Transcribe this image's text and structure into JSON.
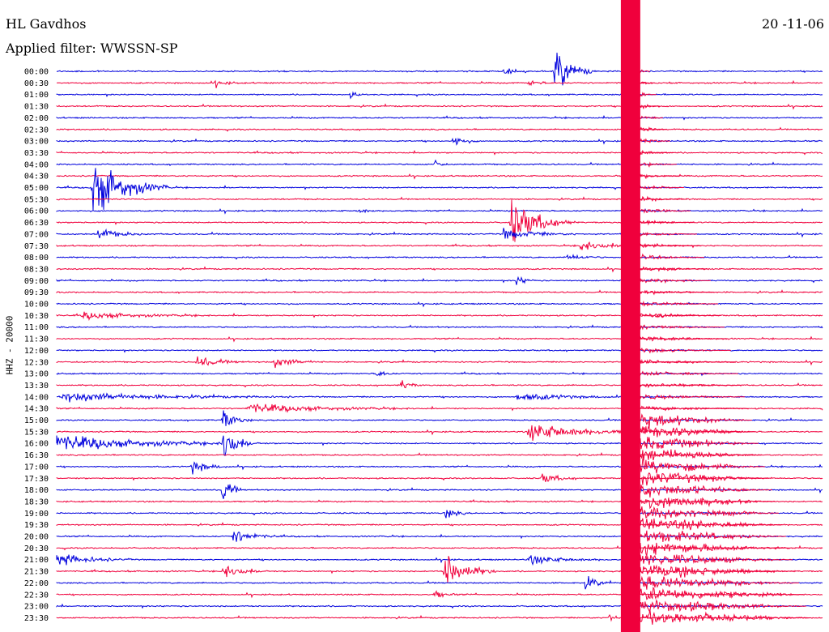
{
  "header": {
    "station": "HL Gavdhos",
    "filter": "Applied filter: WWSSN-SP",
    "date": "20 -11-06"
  },
  "chart_data": {
    "type": "line",
    "title": "HL Gavdhos",
    "ylabel": "HHZ - 20000",
    "times": [
      "00:00",
      "00:30",
      "01:00",
      "01:30",
      "02:00",
      "02:30",
      "03:00",
      "03:30",
      "04:00",
      "04:30",
      "05:00",
      "05:30",
      "06:00",
      "06:30",
      "07:00",
      "07:30",
      "08:00",
      "08:30",
      "09:00",
      "09:30",
      "10:00",
      "10:30",
      "11:00",
      "11:30",
      "12:00",
      "12:30",
      "13:00",
      "13:30",
      "14:00",
      "14:30",
      "15:00",
      "15:30",
      "16:00",
      "16:30",
      "17:00",
      "17:30",
      "18:00",
      "18:30",
      "19:00",
      "19:30",
      "20:00",
      "20:30",
      "21:00",
      "21:30",
      "22:00",
      "22:30",
      "23:00",
      "23:30"
    ],
    "trace_colors": [
      "#0000dd",
      "#f0003c"
    ],
    "events": [
      {
        "row": 0,
        "minute": 19.5,
        "amp": 40,
        "dur": 1.6
      },
      {
        "row": 0,
        "minute": 17.5,
        "amp": 6,
        "dur": 1.2
      },
      {
        "row": 1,
        "minute": 6.2,
        "amp": 6,
        "dur": 1.0
      },
      {
        "row": 1,
        "minute": 18.5,
        "amp": 5,
        "dur": 1.0
      },
      {
        "row": 2,
        "minute": 11.5,
        "amp": 5,
        "dur": 0.8
      },
      {
        "row": 6,
        "minute": 15.5,
        "amp": 12,
        "dur": 1.0
      },
      {
        "row": 8,
        "minute": 14.8,
        "amp": 9,
        "dur": 0.5
      },
      {
        "row": 10,
        "minute": 1.4,
        "amp": 55,
        "dur": 3.0
      },
      {
        "row": 12,
        "minute": 11.8,
        "amp": 6,
        "dur": 0.8
      },
      {
        "row": 13,
        "minute": 17.8,
        "amp": 45,
        "dur": 2.5
      },
      {
        "row": 14,
        "minute": 1.6,
        "amp": 10,
        "dur": 2.0
      },
      {
        "row": 14,
        "minute": 17.5,
        "amp": 10,
        "dur": 3.0
      },
      {
        "row": 15,
        "minute": 20.5,
        "amp": 10,
        "dur": 2.5
      },
      {
        "row": 16,
        "minute": 20.0,
        "amp": 6,
        "dur": 1.5
      },
      {
        "row": 18,
        "minute": 18.0,
        "amp": 10,
        "dur": 0.8
      },
      {
        "row": 21,
        "minute": 1.0,
        "amp": 6,
        "dur": 5.0
      },
      {
        "row": 21,
        "minute": 23.5,
        "amp": 9,
        "dur": 1.0
      },
      {
        "row": 25,
        "minute": 5.5,
        "amp": 10,
        "dur": 2.0
      },
      {
        "row": 25,
        "minute": 8.5,
        "amp": 9,
        "dur": 2.0
      },
      {
        "row": 26,
        "minute": 12.5,
        "amp": 8,
        "dur": 0.8
      },
      {
        "row": 27,
        "minute": 13.5,
        "amp": 11,
        "dur": 0.8
      },
      {
        "row": 28,
        "minute": 0.2,
        "amp": 8,
        "dur": 9.0
      },
      {
        "row": 28,
        "minute": 18.0,
        "amp": 7,
        "dur": 4.5
      },
      {
        "row": 29,
        "minute": 7.5,
        "amp": 8,
        "dur": 6.5
      },
      {
        "row": 30,
        "minute": 6.5,
        "amp": 20,
        "dur": 1.2
      },
      {
        "row": 31,
        "minute": 18.5,
        "amp": 16,
        "dur": 5.0
      },
      {
        "row": 32,
        "minute": 0.0,
        "amp": 14,
        "dur": 8.0
      },
      {
        "row": 32,
        "minute": 6.5,
        "amp": 40,
        "dur": 1.2
      },
      {
        "row": 34,
        "minute": 5.3,
        "amp": 12,
        "dur": 1.5
      },
      {
        "row": 35,
        "minute": 19.0,
        "amp": 10,
        "dur": 1.5
      },
      {
        "row": 36,
        "minute": 6.5,
        "amp": 30,
        "dur": 0.8
      },
      {
        "row": 38,
        "minute": 15.2,
        "amp": 12,
        "dur": 1.0
      },
      {
        "row": 40,
        "minute": 6.9,
        "amp": 14,
        "dur": 1.8
      },
      {
        "row": 42,
        "minute": 0.0,
        "amp": 12,
        "dur": 3.0
      },
      {
        "row": 42,
        "minute": 18.5,
        "amp": 8,
        "dur": 3.0
      },
      {
        "row": 43,
        "minute": 6.5,
        "amp": 14,
        "dur": 1.8
      },
      {
        "row": 43,
        "minute": 15.2,
        "amp": 40,
        "dur": 2.0
      },
      {
        "row": 44,
        "minute": 20.7,
        "amp": 14,
        "dur": 1.0
      },
      {
        "row": 45,
        "minute": 14.8,
        "amp": 8,
        "dur": 1.0
      },
      {
        "row": 47,
        "minute": 21.6,
        "amp": 10,
        "dur": 0.8
      }
    ],
    "big_quake": {
      "start_row": 0,
      "minute": 22.1
    }
  }
}
